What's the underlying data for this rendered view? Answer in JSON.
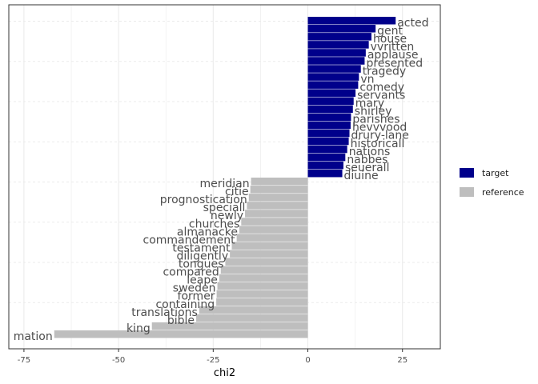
{
  "chart_data": {
    "type": "bar",
    "orientation": "horizontal",
    "xlabel": "chi2",
    "ylabel": "",
    "xlim": [
      -79,
      35
    ],
    "xticks": [
      -75,
      -50,
      -25,
      0,
      25
    ],
    "grid": true,
    "legend_position": "right",
    "colors": {
      "target": "#00008B",
      "reference": "#BEBEBE"
    },
    "series": [
      {
        "name": "target",
        "categories": [
          "acted",
          "gent",
          "house",
          "vvritten",
          "applause",
          "presented",
          "tragedy",
          "vn",
          "comedy",
          "servants",
          "mary",
          "shirley",
          "parishes",
          "hevvvood",
          "drury-lane",
          "historicall",
          "nations",
          "nabbes",
          "seuerall",
          "diuine"
        ],
        "values": [
          23.2,
          17.9,
          16.8,
          16.1,
          15.3,
          15.0,
          14.0,
          13.5,
          13.3,
          12.6,
          12.1,
          11.9,
          11.4,
          11.3,
          11.0,
          10.8,
          10.4,
          9.9,
          9.4,
          9.1
        ]
      },
      {
        "name": "reference",
        "categories": [
          "meridian",
          "citie",
          "prognostication",
          "speciall",
          "newly",
          "churches",
          "almanacke",
          "commandement",
          "testament",
          "diligently",
          "tongues",
          "compared",
          "leape",
          "sweden",
          "former",
          "containing",
          "translations",
          "bible",
          "king",
          "mation"
        ],
        "values": [
          -15.0,
          -15.2,
          -15.6,
          -16.1,
          -16.6,
          -17.6,
          -18.1,
          -18.8,
          -20.1,
          -20.6,
          -21.8,
          -23.0,
          -23.4,
          -23.9,
          -24.1,
          -24.2,
          -28.7,
          -29.5,
          -41.2,
          -67.0
        ]
      }
    ]
  }
}
